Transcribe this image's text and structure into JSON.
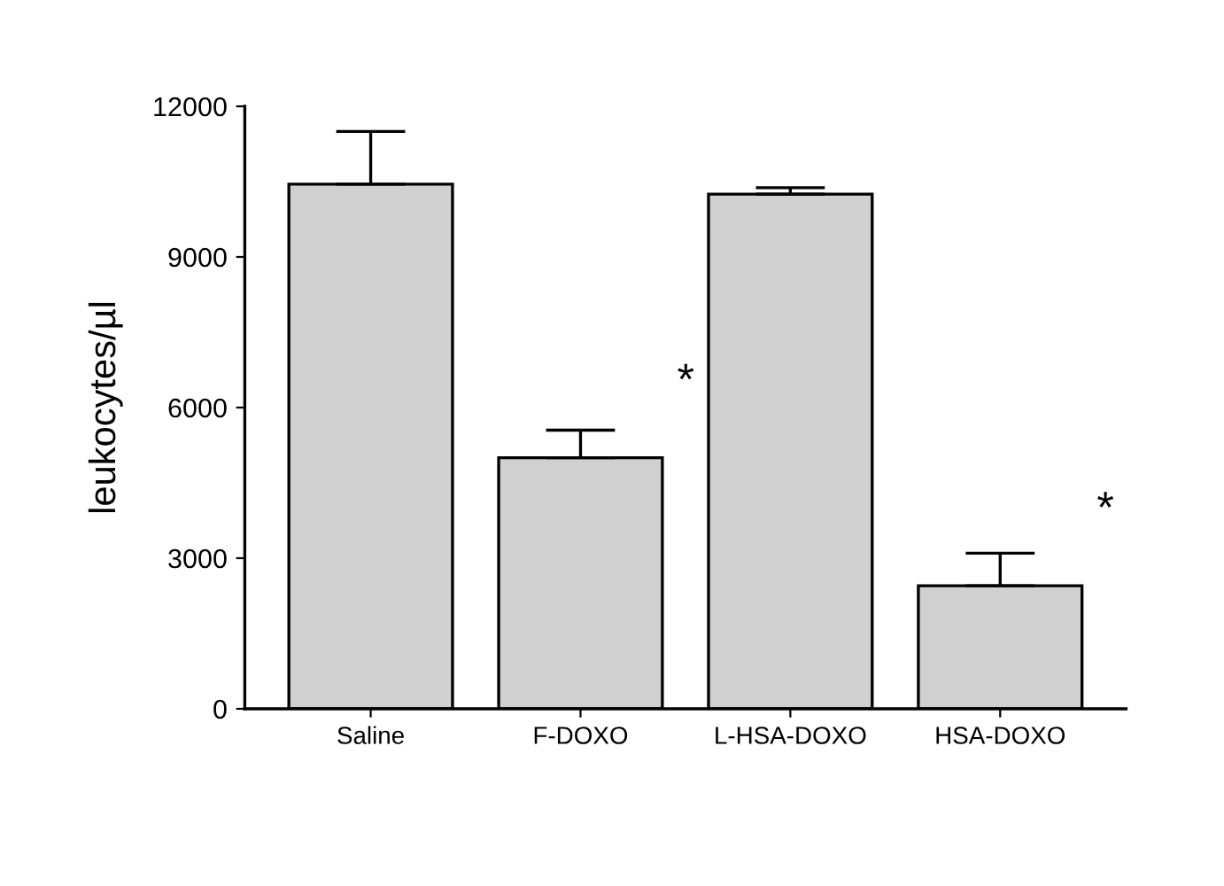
{
  "chart_data": {
    "type": "bar",
    "ylabel": "leukocytes/µl",
    "categories": [
      "Saline",
      "F-DOXO",
      "L-HSA-DOXO",
      "HSA-DOXO"
    ],
    "values": [
      10450,
      5000,
      10250,
      2450
    ],
    "errors": [
      [
        10450,
        11500
      ],
      [
        5000,
        5550
      ],
      [
        10250,
        10380
      ],
      [
        2450,
        3100
      ]
    ],
    "color": "#d0d0d0",
    "ylim": [
      0,
      12000
    ],
    "yticks": [
      0,
      3000,
      6000,
      9000,
      12000
    ],
    "grid": false,
    "annotations": [
      {
        "text": "*",
        "x": "F-DOXO",
        "y": 5000
      },
      {
        "text": "*",
        "x": "HSA-DOXO",
        "y": 2450
      }
    ]
  }
}
